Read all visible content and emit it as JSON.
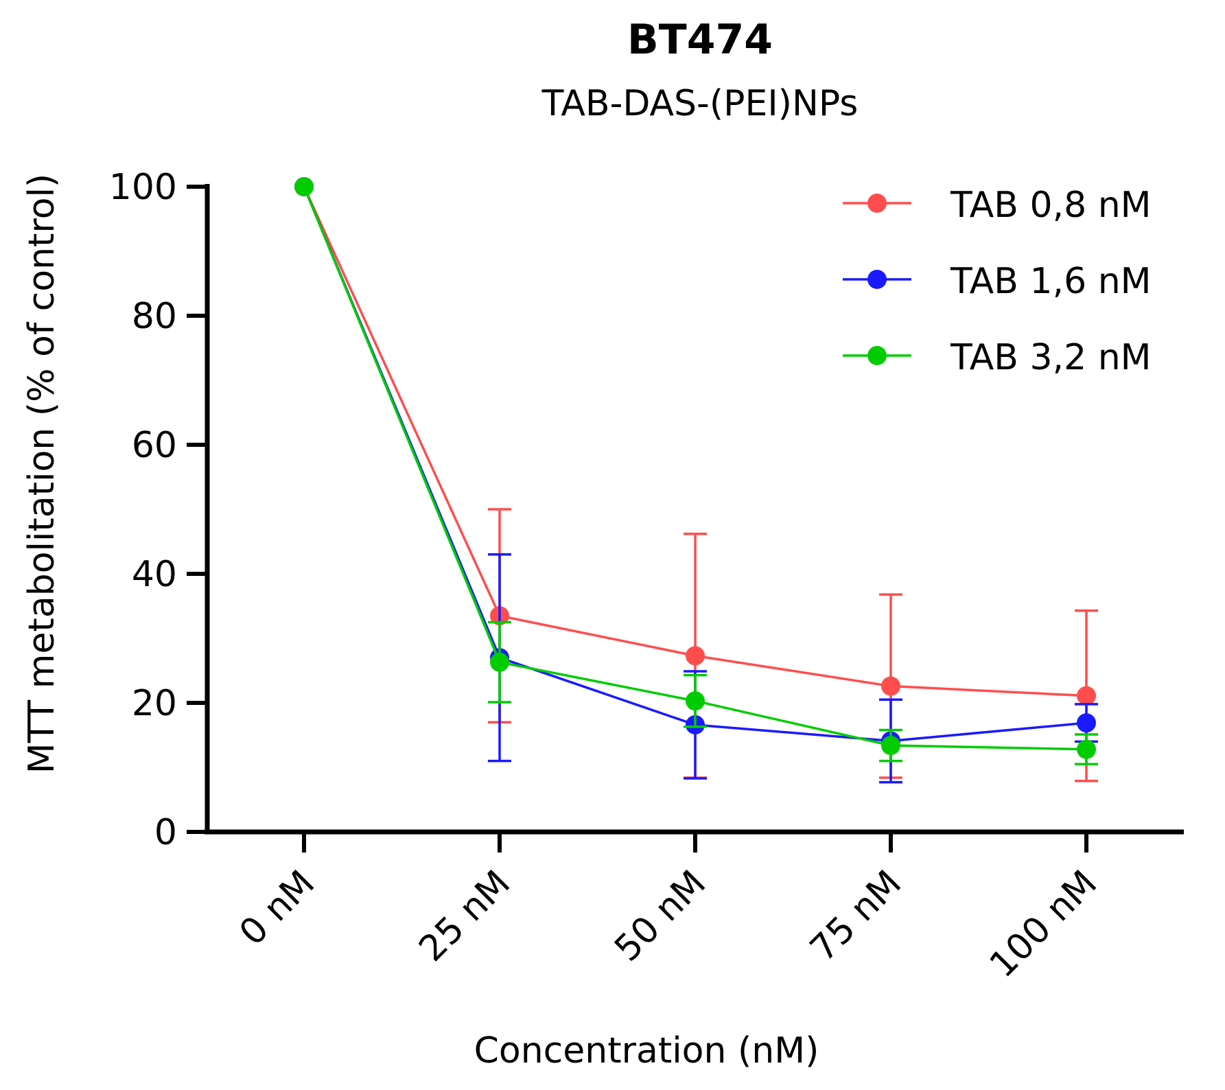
{
  "chart_data": {
    "type": "line",
    "title": "BT474",
    "subtitle": "TAB-DAS-(PEI)NPs",
    "xlabel": "Concentration (nM)",
    "ylabel": "MTT metabolitation (% of control)",
    "categories": [
      "0 nM",
      "25 nM",
      "50 nM",
      "75 nM",
      "100 nM"
    ],
    "ylim": [
      0,
      100
    ],
    "yticks": [
      0,
      20,
      40,
      60,
      80,
      100
    ],
    "legend_position": "top-right",
    "series": [
      {
        "name": "TAB 0,8 nM",
        "color": "#ff4d4d",
        "values": [
          100,
          33.5,
          27.3,
          22.6,
          21.1
        ],
        "error": [
          0,
          16.5,
          18.9,
          14.2,
          13.2
        ]
      },
      {
        "name": "TAB 1,6 nM",
        "color": "#1a1aff",
        "values": [
          100,
          27.0,
          16.6,
          14.1,
          16.9
        ],
        "error": [
          0,
          16.0,
          8.3,
          6.4,
          2.9
        ]
      },
      {
        "name": "TAB 3,2 nM",
        "color": "#00cc00",
        "values": [
          100,
          26.3,
          20.3,
          13.4,
          12.8
        ],
        "error": [
          0,
          6.2,
          4.0,
          2.4,
          2.3
        ]
      }
    ]
  }
}
